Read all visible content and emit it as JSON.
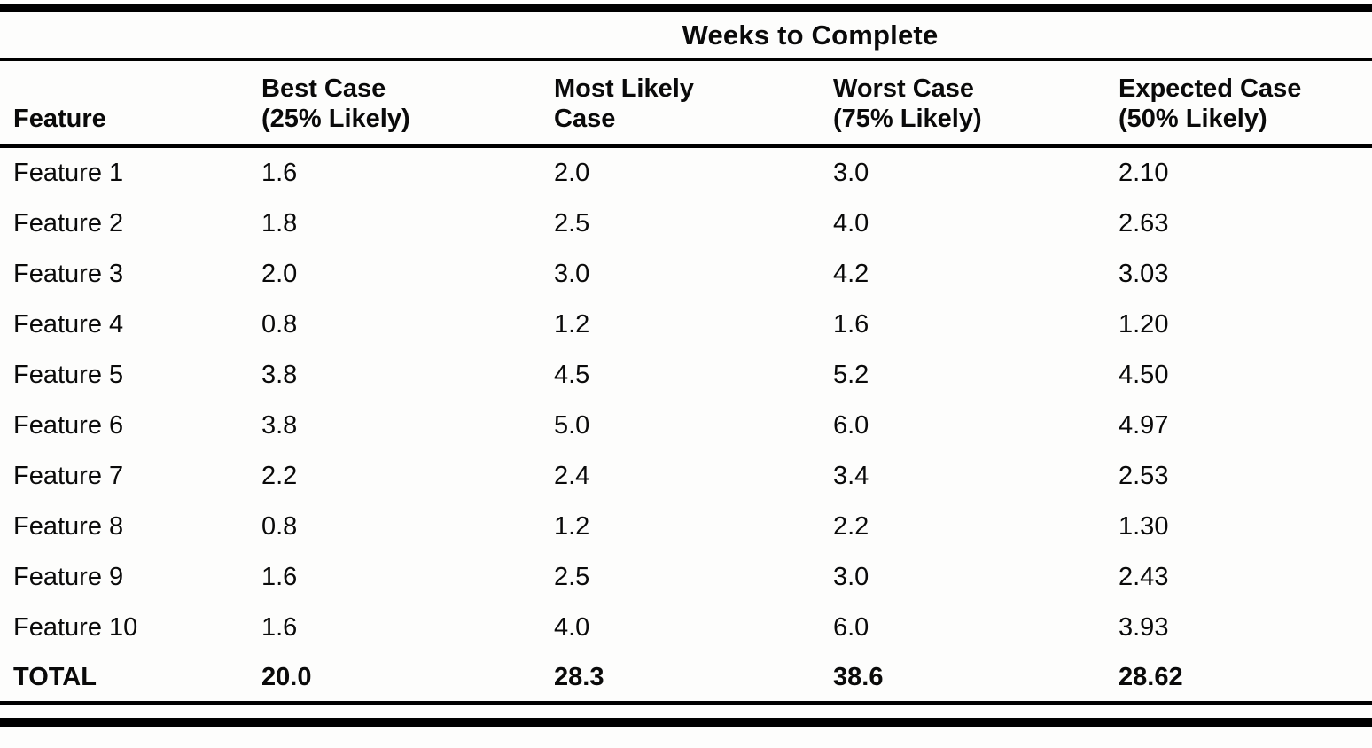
{
  "page": {
    "title": "Weeks to Complete"
  },
  "table": {
    "feature_header": "Feature",
    "columns": [
      {
        "line1": "Best Case",
        "line2": "(25% Likely)"
      },
      {
        "line1": "Most Likely",
        "line2": "Case"
      },
      {
        "line1": "Worst Case",
        "line2": "(75% Likely)"
      },
      {
        "line1": "Expected Case",
        "line2": "(50% Likely)"
      }
    ],
    "rows": [
      {
        "feature": "Feature 1",
        "best": "1.6",
        "most_likely": "2.0",
        "worst": "3.0",
        "expected": "2.10"
      },
      {
        "feature": "Feature 2",
        "best": "1.8",
        "most_likely": "2.5",
        "worst": "4.0",
        "expected": "2.63"
      },
      {
        "feature": "Feature 3",
        "best": "2.0",
        "most_likely": "3.0",
        "worst": "4.2",
        "expected": "3.03"
      },
      {
        "feature": "Feature 4",
        "best": "0.8",
        "most_likely": "1.2",
        "worst": "1.6",
        "expected": "1.20"
      },
      {
        "feature": "Feature 5",
        "best": "3.8",
        "most_likely": "4.5",
        "worst": "5.2",
        "expected": "4.50"
      },
      {
        "feature": "Feature 6",
        "best": "3.8",
        "most_likely": "5.0",
        "worst": "6.0",
        "expected": "4.97"
      },
      {
        "feature": "Feature 7",
        "best": "2.2",
        "most_likely": "2.4",
        "worst": "3.4",
        "expected": "2.53"
      },
      {
        "feature": "Feature 8",
        "best": "0.8",
        "most_likely": "1.2",
        "worst": "2.2",
        "expected": "1.30"
      },
      {
        "feature": "Feature 9",
        "best": "1.6",
        "most_likely": "2.5",
        "worst": "3.0",
        "expected": "2.43"
      },
      {
        "feature": "Feature 10",
        "best": "1.6",
        "most_likely": "4.0",
        "worst": "6.0",
        "expected": "3.93"
      }
    ],
    "total": {
      "feature": "TOTAL",
      "best": "20.0",
      "most_likely": "28.3",
      "worst": "38.6",
      "expected": "28.62"
    }
  }
}
